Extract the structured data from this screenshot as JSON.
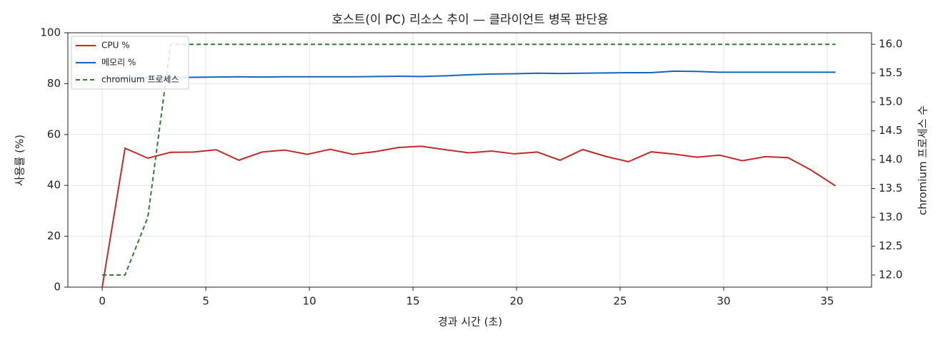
{
  "chart_data": {
    "type": "line",
    "title": "호스트(이 PC) 리소스 추이 — 클라이언트 병목 판단용",
    "xlabel": "경과 시간 (초)",
    "ylabel": "사용률 (%)",
    "y2label": "chromium 프로세스 수",
    "x": [
      0,
      1.1,
      2.2,
      3.3,
      4.4,
      5.5,
      6.6,
      7.7,
      8.8,
      9.9,
      11.0,
      12.1,
      13.2,
      14.3,
      15.4,
      16.6,
      17.7,
      18.8,
      19.9,
      21.0,
      22.1,
      23.2,
      24.3,
      25.4,
      26.5,
      27.6,
      28.7,
      29.8,
      30.9,
      32.0,
      33.1,
      34.2,
      35.4
    ],
    "series": [
      {
        "name": "CPU %",
        "color": "#c62828",
        "dash": false,
        "axis": "y",
        "values": [
          0,
          54.6,
          50.7,
          53,
          53.1,
          54,
          49.9,
          53.1,
          53.9,
          52.2,
          54.2,
          52.2,
          53.3,
          54.9,
          55.4,
          54,
          52.8,
          53.5,
          52.4,
          53.1,
          49.9,
          54.1,
          51.4,
          49.3,
          53.2,
          52.3,
          51.1,
          51.9,
          49.7,
          51.3,
          50.9,
          46.1,
          39.8
        ]
      },
      {
        "name": "메모리 %",
        "color": "#1565c0",
        "dash": false,
        "axis": "y",
        "values": [
          82.0,
          82.2,
          82.3,
          82.4,
          82.5,
          82.6,
          82.7,
          82.6,
          82.7,
          82.7,
          82.7,
          82.7,
          82.8,
          82.9,
          82.8,
          83.1,
          83.5,
          83.8,
          83.9,
          84.1,
          84.0,
          84.1,
          84.2,
          84.3,
          84.3,
          84.9,
          84.8,
          84.5,
          84.5,
          84.5,
          84.5,
          84.5,
          84.5
        ]
      },
      {
        "name": "chromium 프로세스",
        "color": "#2e7d32",
        "dash": true,
        "axis": "y2",
        "values": [
          12,
          12,
          13,
          16,
          16,
          16,
          16,
          16,
          16,
          16,
          16,
          16,
          16,
          16,
          16,
          16,
          16,
          16,
          16,
          16,
          16,
          16,
          16,
          16,
          16,
          16,
          16,
          16,
          16,
          16,
          16,
          16,
          16
        ]
      }
    ],
    "xlim": [
      -1.66,
      37.14
    ],
    "xticks": [
      0,
      5,
      10,
      15,
      20,
      25,
      30,
      35
    ],
    "ylim": [
      0,
      100
    ],
    "yticks": [
      0,
      20,
      40,
      60,
      80,
      100
    ],
    "y2lim": [
      11.79,
      16.2
    ],
    "y2ticks": [
      {
        "value": 12,
        "label": "12.0"
      },
      12.5,
      {
        "value": 13,
        "label": "13.0"
      },
      13.5,
      {
        "value": 14,
        "label": "14.0"
      },
      14.5,
      {
        "value": 15,
        "label": "15.0"
      },
      15.5,
      {
        "value": 16,
        "label": "16.0"
      }
    ],
    "grid": true,
    "legend": "upper-left"
  }
}
